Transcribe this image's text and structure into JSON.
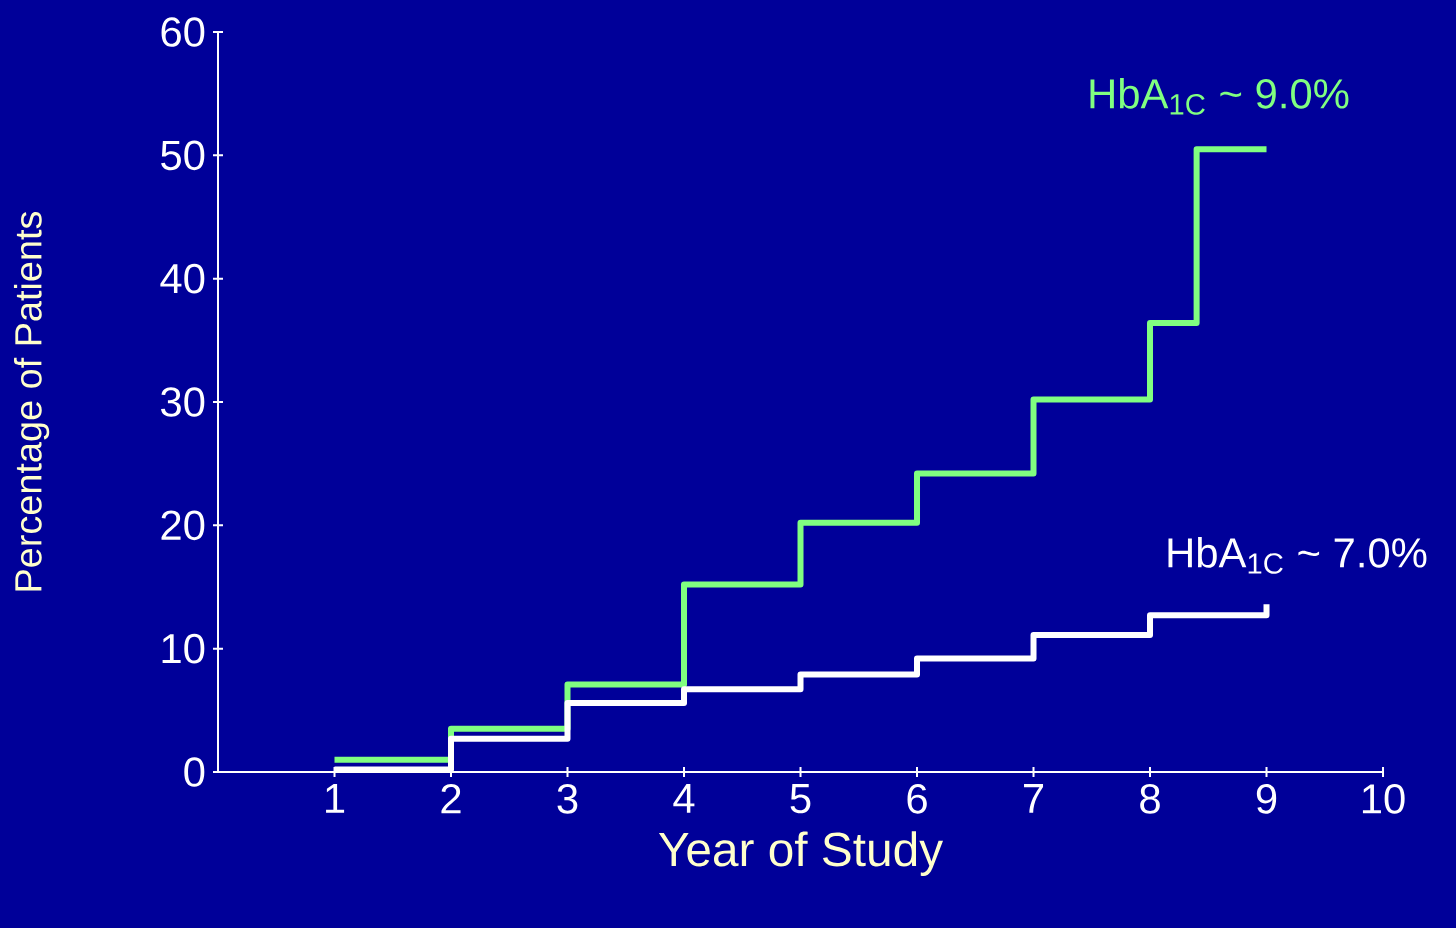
{
  "chart_data": {
    "type": "step",
    "xlabel": "Year of Study",
    "ylabel": "Percentage of Patients",
    "xlim": [
      0,
      10
    ],
    "xticks": [
      1,
      2,
      3,
      4,
      5,
      6,
      7,
      8,
      9,
      10
    ],
    "ylim": [
      0,
      60
    ],
    "yticks": [
      0,
      10,
      20,
      30,
      40,
      50,
      60
    ],
    "grid": false,
    "legend": false,
    "series": [
      {
        "name": "HbA$_{1C}$ ~ 9.0%",
        "color": "#80ff80",
        "x": [
          1,
          2,
          3,
          4,
          5,
          6,
          7,
          8,
          8.4,
          9
        ],
        "values": [
          1,
          3.5,
          7.1,
          15.2,
          20.2,
          24.2,
          30.2,
          36.4,
          50.5,
          50.5
        ]
      },
      {
        "name": "HbA$_{1C}$ ~ 7.0%",
        "color": "#ffffff",
        "x": [
          1,
          2,
          3,
          4,
          5,
          6,
          7,
          8,
          9
        ],
        "values": [
          0.2,
          2.7,
          5.6,
          6.7,
          7.9,
          9.2,
          11.1,
          12.7,
          13.6
        ]
      }
    ]
  }
}
